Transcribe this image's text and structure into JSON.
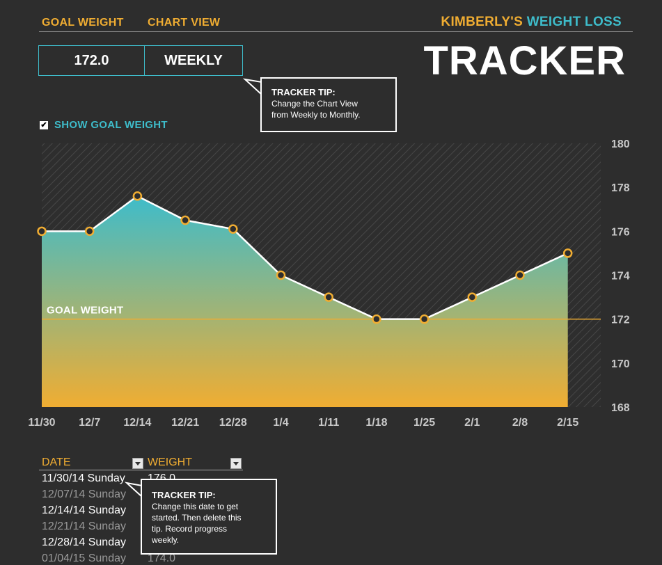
{
  "header": {
    "goal_weight_label": "GOAL WEIGHT",
    "chart_view_label": "CHART VIEW",
    "goal_weight_value": "172.0",
    "chart_view_value": "WEEKLY",
    "title_owner": "KIMBERLY'S",
    "title_rest": "WEIGHT LOSS",
    "title_big": "TRACKER"
  },
  "tips": {
    "chart_tip_title": "TRACKER TIP:",
    "chart_tip_line1": "Change the Chart View",
    "chart_tip_line2": "from Weekly to Monthly.",
    "date_tip_title": "TRACKER TIP:",
    "date_tip_line1": "Change this date to get",
    "date_tip_line2": "started. Then delete this",
    "date_tip_line3": "tip. Record progress",
    "date_tip_line4": "weekly."
  },
  "options": {
    "show_goal_label": "SHOW GOAL WEIGHT",
    "show_goal_checked": true
  },
  "chart_data": {
    "type": "area",
    "categories": [
      "11/30",
      "12/7",
      "12/14",
      "12/21",
      "12/28",
      "1/4",
      "1/11",
      "1/18",
      "1/25",
      "2/1",
      "2/8",
      "2/15"
    ],
    "values": [
      176,
      176,
      177.6,
      176.5,
      176.1,
      174,
      173,
      172,
      172,
      173,
      174,
      175
    ],
    "goal": 172,
    "goal_label": "GOAL WEIGHT",
    "ylim": [
      168,
      180
    ],
    "yticks": [
      "180",
      "178",
      "176",
      "174",
      "172",
      "170",
      "168"
    ],
    "colors": {
      "top": "#3ebcca",
      "bottom": "#f0ad32",
      "marker": "#f0ad32",
      "goal_line": "#f0ad32"
    }
  },
  "table": {
    "date_header": "DATE",
    "weight_header": "WEIGHT",
    "rows": [
      {
        "date": "11/30/14 Sunday",
        "weight": "176.0"
      },
      {
        "date": "12/07/14 Sunday",
        "weight": ""
      },
      {
        "date": "12/14/14 Sunday",
        "weight": ""
      },
      {
        "date": "12/21/14 Sunday",
        "weight": ""
      },
      {
        "date": "12/28/14 Sunday",
        "weight": ""
      },
      {
        "date": "01/04/15 Sunday",
        "weight": "174.0"
      }
    ]
  }
}
